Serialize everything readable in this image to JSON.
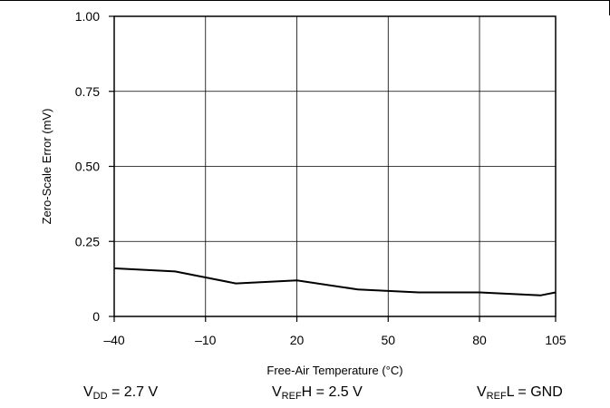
{
  "chart_data": {
    "type": "line",
    "title": "",
    "xlabel": "Free-Air Temperature (°C)",
    "ylabel": "Zero-Scale Error (mV)",
    "xlim": [
      -40,
      105
    ],
    "ylim": [
      0,
      1.0
    ],
    "x_ticks": [
      -40,
      -10,
      20,
      50,
      80,
      105
    ],
    "x_tick_labels": [
      "–40",
      "–10",
      "20",
      "50",
      "80",
      "105"
    ],
    "y_ticks": [
      0,
      0.25,
      0.5,
      0.75,
      1.0
    ],
    "y_tick_labels": [
      "0",
      "0.25",
      "0.50",
      "0.75",
      "1.00"
    ],
    "grid": true,
    "series": [
      {
        "x": [
          -40,
          -20,
          -10,
          0,
          20,
          40,
          60,
          80,
          100,
          105
        ],
        "y": [
          0.16,
          0.15,
          0.13,
          0.11,
          0.12,
          0.09,
          0.08,
          0.08,
          0.07,
          0.08
        ]
      }
    ],
    "line_color": "#000000"
  },
  "conditions": {
    "vdd": {
      "main": "V",
      "sub": "DD",
      "rest": " = 2.7 V"
    },
    "vrefh": {
      "main": "V",
      "sub": "REF",
      "rest": "H = 2.5 V"
    },
    "vrefl": {
      "main": "V",
      "sub": "REF",
      "rest": "L = GND"
    }
  }
}
